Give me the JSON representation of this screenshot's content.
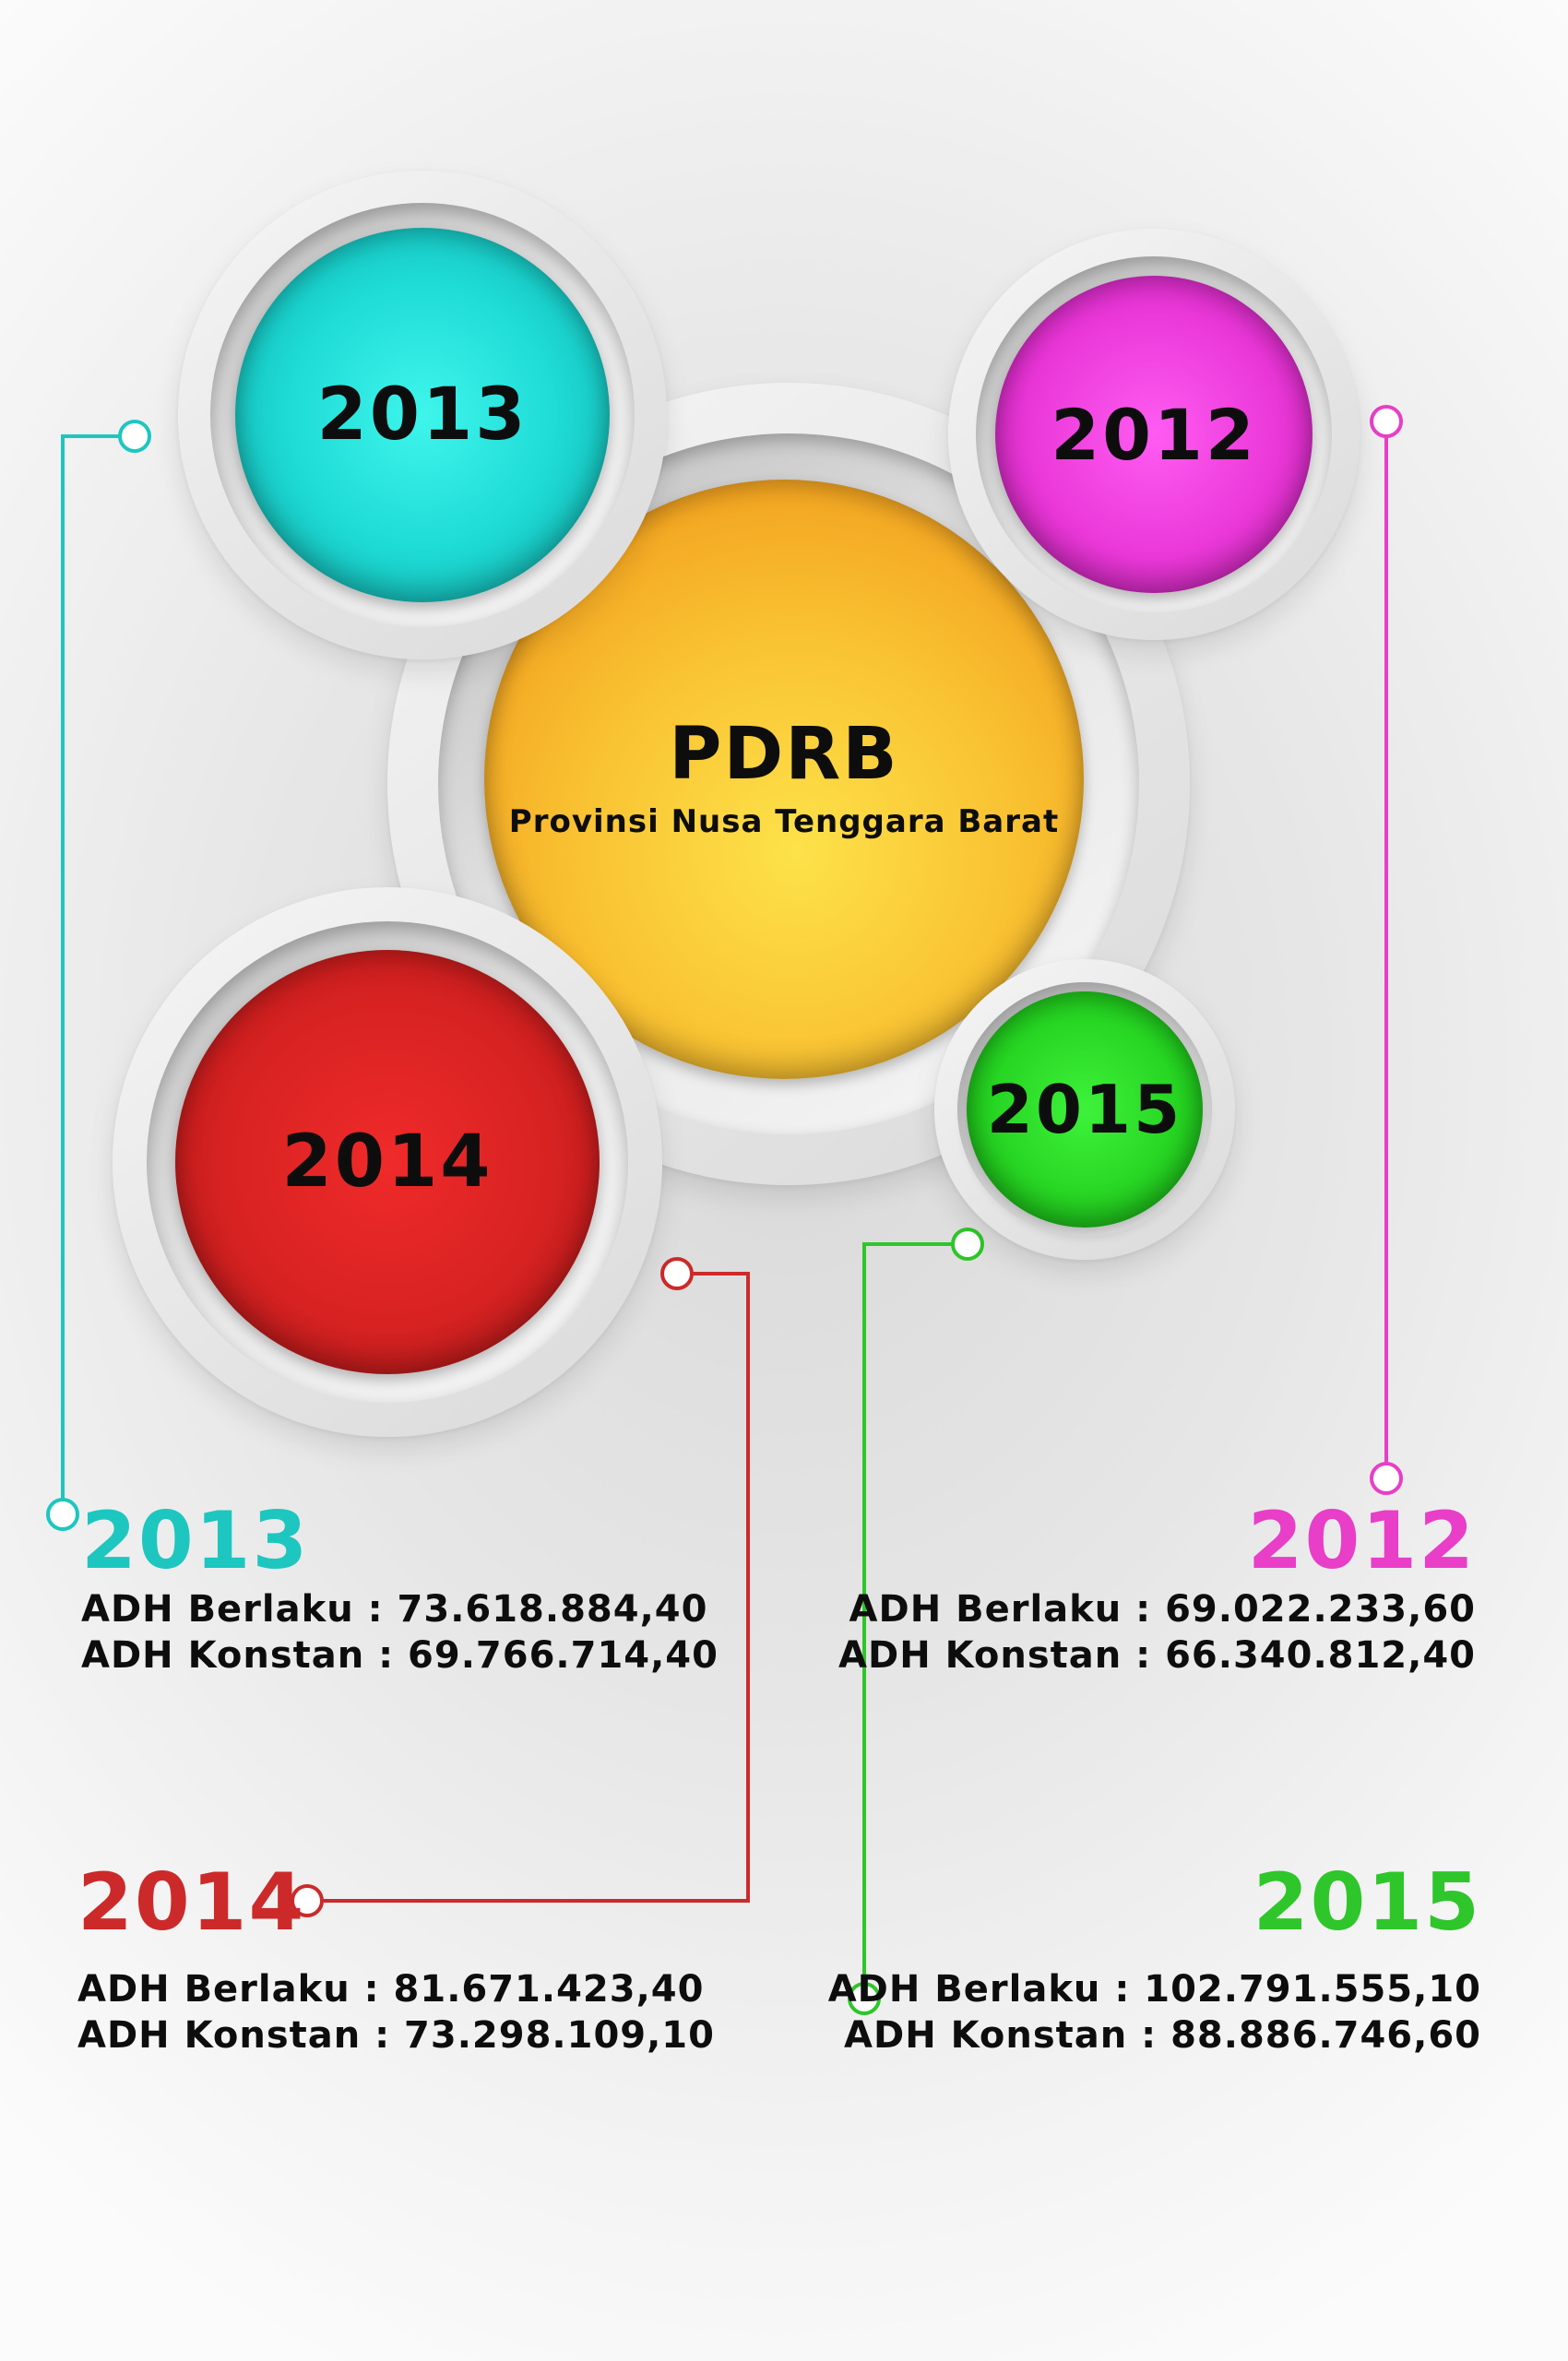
{
  "center": {
    "title": "PDRB",
    "subtitle": "Provinsi Nusa Tenggara Barat",
    "color": "#f7b52a"
  },
  "circles": [
    {
      "year": "2013",
      "color": "#19d6d2"
    },
    {
      "year": "2012",
      "color": "#e832d0"
    },
    {
      "year": "2014",
      "color": "#d92222"
    },
    {
      "year": "2015",
      "color": "#24c81f"
    }
  ],
  "entries": [
    {
      "year": "2013",
      "color": "#1ec6c0",
      "berlaku": "ADH Berlaku : 73.618.884,40",
      "konstan": "ADH Konstan : 69.766.714,40"
    },
    {
      "year": "2012",
      "color": "#e83ec8",
      "berlaku": "ADH Berlaku : 69.022.233,60",
      "konstan": "ADH Konstan : 66.340.812,40"
    },
    {
      "year": "2014",
      "color": "#cc2a2a",
      "berlaku": "ADH Berlaku : 81.671.423,40",
      "konstan": "ADH Konstan : 73.298.109,10"
    },
    {
      "year": "2015",
      "color": "#2ec62a",
      "berlaku": "ADH Berlaku : 102.791.555,10",
      "konstan": "ADH Konstan : 88.886.746,60"
    }
  ]
}
